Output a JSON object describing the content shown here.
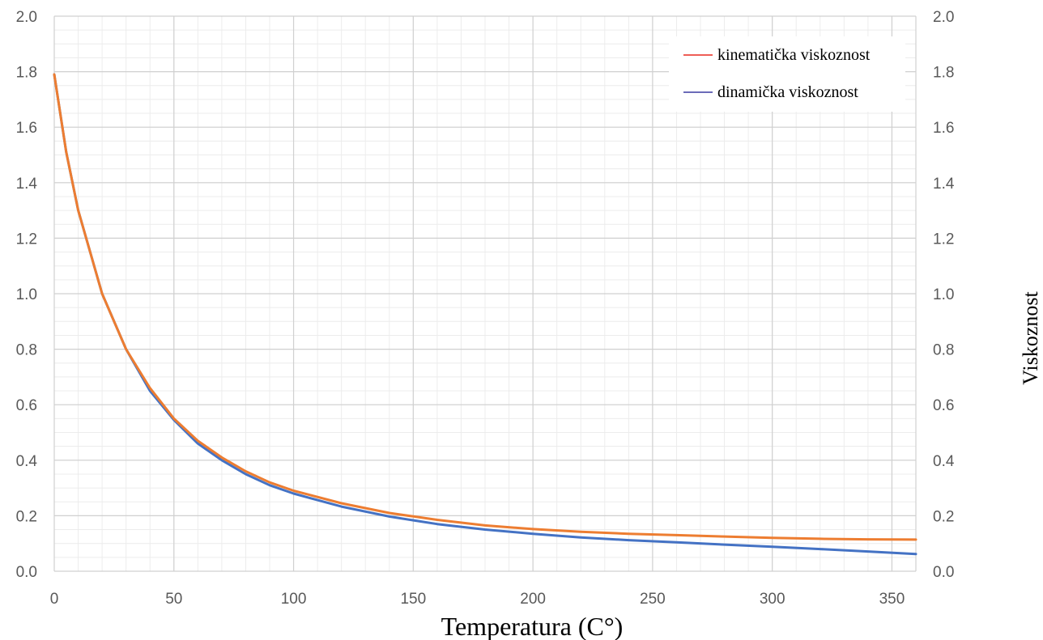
{
  "chart_data": {
    "type": "line",
    "title": "",
    "xlabel": "Temperatura (C°)",
    "ylabel": "Viskoznost",
    "xlim": [
      0,
      360
    ],
    "ylim": [
      0,
      2.0
    ],
    "x_ticks": [
      "0",
      "50",
      "100",
      "150",
      "200",
      "250",
      "300",
      "350"
    ],
    "y_ticks": [
      "0.0",
      "0.2",
      "0.4",
      "0.6",
      "0.8",
      "1.0",
      "1.2",
      "1.4",
      "1.6",
      "1.8",
      "2.0"
    ],
    "y2_ticks": [
      "0.0",
      "0.2",
      "0.4",
      "0.6",
      "0.8",
      "1.0",
      "1.2",
      "1.4",
      "1.6",
      "1.8",
      "2.0"
    ],
    "grid": true,
    "legend_position": "top-right",
    "legend": [
      {
        "label": "kinematička viskoznost",
        "color": "#e8281e"
      },
      {
        "label": "dinamička viskoznost",
        "color": "#3a3aa0"
      }
    ],
    "x": [
      0,
      5,
      10,
      20,
      30,
      40,
      50,
      60,
      70,
      80,
      90,
      100,
      120,
      140,
      160,
      180,
      200,
      220,
      240,
      260,
      280,
      300,
      320,
      340,
      360
    ],
    "series": [
      {
        "name": "kinematička viskoznost",
        "color": "#ed7d31",
        "values": [
          1.79,
          1.51,
          1.3,
          1.0,
          0.8,
          0.66,
          0.55,
          0.47,
          0.41,
          0.36,
          0.32,
          0.29,
          0.245,
          0.21,
          0.185,
          0.165,
          0.152,
          0.142,
          0.135,
          0.13,
          0.125,
          0.12,
          0.117,
          0.115,
          0.114
        ]
      },
      {
        "name": "dinamička viskoznost",
        "color": "#4472c4",
        "values": [
          1.79,
          1.51,
          1.3,
          1.0,
          0.8,
          0.65,
          0.545,
          0.46,
          0.4,
          0.35,
          0.31,
          0.28,
          0.233,
          0.197,
          0.17,
          0.15,
          0.135,
          0.122,
          0.112,
          0.104,
          0.096,
          0.088,
          0.08,
          0.071,
          0.062
        ]
      }
    ]
  }
}
